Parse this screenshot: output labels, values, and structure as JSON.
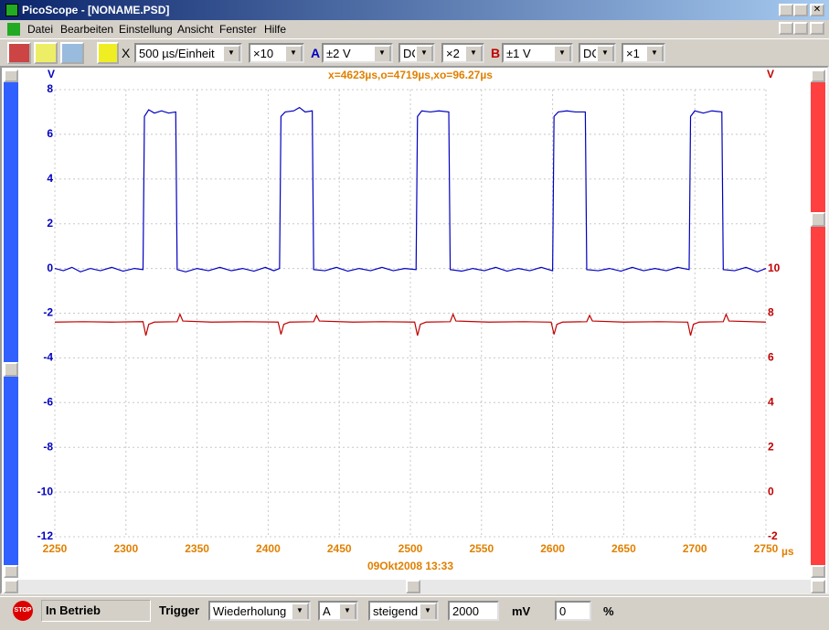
{
  "window": {
    "title": "PicoScope - [NONAME.PSD]"
  },
  "menu": [
    "Datei",
    "Bearbeiten",
    "Einstellung",
    "Ansicht",
    "Fenster",
    "Hilfe"
  ],
  "toolbar": {
    "x_label": "X",
    "timebase": "500 µs/Einheit",
    "x_zoom": "×10",
    "a_range": "±2 V",
    "a_coupling": "DC",
    "a_zoom": "×2",
    "b_range": "±1 V",
    "b_coupling": "DC",
    "b_zoom": "×1"
  },
  "chart_data": {
    "type": "line",
    "cursor_text": "x=4623µs,o=4719µs,xo=96.27µs",
    "timestamp": "09Okt2008  13:33",
    "y_label": "V",
    "y2_label": "V",
    "x_unit": "µs",
    "xlim": [
      2250,
      2750
    ],
    "xticks": [
      2250,
      2300,
      2350,
      2400,
      2450,
      2500,
      2550,
      2600,
      2650,
      2700,
      2750
    ],
    "ylim": [
      -12,
      8
    ],
    "yticks": [
      -12,
      -10,
      -8,
      -6,
      -4,
      -2,
      0,
      2,
      4,
      6,
      8
    ],
    "y2lim": [
      -2,
      18
    ],
    "y2ticks": [
      -2,
      0,
      2,
      4,
      6,
      8,
      10
    ],
    "grid": true,
    "series": [
      {
        "name": "A",
        "color": "#0000c0",
        "x": [
          2250,
          2256,
          2262,
          2268,
          2275,
          2282,
          2290,
          2298,
          2306,
          2312,
          2313,
          2316,
          2320,
          2325,
          2330,
          2335,
          2336,
          2342,
          2350,
          2358,
          2366,
          2374,
          2382,
          2390,
          2398,
          2404,
          2408,
          2409,
          2412,
          2418,
          2422,
          2426,
          2431,
          2432,
          2440,
          2448,
          2456,
          2464,
          2472,
          2480,
          2488,
          2496,
          2504,
          2505,
          2508,
          2514,
          2520,
          2527,
          2528,
          2536,
          2544,
          2552,
          2560,
          2568,
          2576,
          2584,
          2592,
          2600,
          2601,
          2604,
          2610,
          2616,
          2623,
          2624,
          2632,
          2640,
          2648,
          2656,
          2664,
          2672,
          2680,
          2688,
          2696,
          2697,
          2700,
          2706,
          2712,
          2719,
          2720,
          2728,
          2736,
          2744,
          2750
        ],
        "values": [
          0,
          -0.1,
          0.05,
          -0.15,
          0,
          -0.1,
          0.05,
          -0.12,
          0,
          -0.05,
          6.8,
          7.1,
          6.95,
          7.05,
          6.95,
          7.0,
          -0.05,
          -0.15,
          0,
          -0.1,
          0.05,
          -0.1,
          0,
          -0.12,
          0.05,
          -0.1,
          0,
          6.8,
          7.0,
          7.05,
          7.2,
          7.0,
          7.05,
          -0.05,
          -0.1,
          0.05,
          -0.12,
          0,
          -0.1,
          0.05,
          -0.1,
          0,
          -0.05,
          6.8,
          7.05,
          7.0,
          7.05,
          7.0,
          -0.05,
          -0.12,
          0,
          -0.1,
          0.05,
          -0.12,
          0,
          -0.1,
          0.05,
          -0.1,
          6.8,
          7.0,
          7.05,
          7.0,
          7.0,
          -0.05,
          -0.1,
          0,
          -0.12,
          0.05,
          -0.1,
          0,
          -0.1,
          0.05,
          -0.05,
          6.8,
          7.05,
          6.95,
          7.05,
          7.0,
          -0.05,
          -0.1,
          0.05,
          -0.15,
          0
        ]
      },
      {
        "name": "B",
        "color": "#c00000",
        "axis": "y2",
        "x": [
          2250,
          2270,
          2290,
          2312,
          2314,
          2316,
          2320,
          2336,
          2338,
          2340,
          2360,
          2385,
          2407,
          2409,
          2411,
          2415,
          2432,
          2434,
          2436,
          2460,
          2480,
          2503,
          2505,
          2507,
          2511,
          2528,
          2530,
          2532,
          2555,
          2580,
          2599,
          2601,
          2603,
          2607,
          2624,
          2626,
          2628,
          2650,
          2675,
          2695,
          2697,
          2699,
          2703,
          2720,
          2722,
          2724,
          2750
        ],
        "values": [
          7.6,
          7.62,
          7.6,
          7.62,
          7.0,
          7.5,
          7.6,
          7.62,
          7.95,
          7.65,
          7.6,
          7.62,
          7.6,
          7.05,
          7.5,
          7.6,
          7.62,
          7.9,
          7.65,
          7.6,
          7.62,
          7.6,
          7.0,
          7.5,
          7.6,
          7.62,
          7.95,
          7.65,
          7.6,
          7.62,
          7.6,
          7.05,
          7.5,
          7.6,
          7.62,
          7.9,
          7.65,
          7.6,
          7.62,
          7.6,
          7.0,
          7.5,
          7.6,
          7.62,
          7.95,
          7.65,
          7.6
        ]
      }
    ]
  },
  "status": {
    "stop": "STOP",
    "state": "In Betrieb",
    "trigger_label": "Trigger",
    "trigger_mode": "Wiederholung",
    "trigger_channel": "A",
    "trigger_edge": "steigend",
    "trigger_level": "2000",
    "level_unit": "mV",
    "delay": "0",
    "delay_unit": "%"
  }
}
